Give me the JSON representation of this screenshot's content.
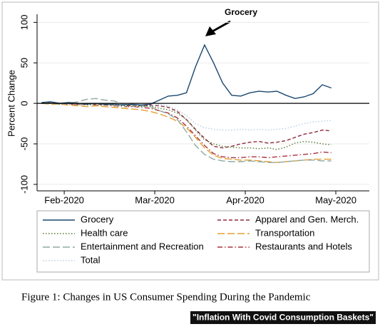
{
  "chart_data": {
    "type": "line",
    "y_label": "Percent Change",
    "annotation": "Grocery",
    "x": [
      1.75,
      1.85,
      1.95,
      2.05,
      2.15,
      2.25,
      2.35,
      2.45,
      2.55,
      2.65,
      2.75,
      2.85,
      2.95,
      3.05,
      3.15,
      3.25,
      3.35,
      3.45,
      3.55,
      3.65,
      3.75,
      3.85,
      3.95,
      4.05,
      4.15,
      4.25,
      4.35,
      4.45,
      4.55,
      4.65,
      4.75,
      4.85,
      4.95
    ],
    "xlim": [
      1.7,
      5.37
    ],
    "xticks": [
      {
        "value": 2,
        "label": "Feb-2020"
      },
      {
        "value": 3,
        "label": "Mar-2020"
      },
      {
        "value": 4,
        "label": "Apr-2020"
      },
      {
        "value": 5,
        "label": "May-2020"
      }
    ],
    "ylim": [
      -108,
      110
    ],
    "yticks": [
      -100,
      -50,
      0,
      50,
      100
    ],
    "grid": true,
    "hline": 0,
    "series": [
      {
        "name": "Grocery",
        "color": "#1a476f",
        "style": "solid",
        "values": [
          1,
          2,
          0,
          1,
          0,
          -1,
          0,
          -1,
          -1,
          -2,
          -1,
          -2,
          -1,
          4,
          9,
          10,
          13,
          45,
          72,
          50,
          25,
          10,
          9,
          13,
          15,
          14,
          15,
          10,
          6,
          8,
          12,
          23,
          19
        ]
      },
      {
        "name": "Health care",
        "color": "#55752f",
        "style": "dotted",
        "values": [
          0,
          1,
          -1,
          0,
          -1,
          -2,
          -1,
          -2,
          -2,
          -3,
          -3,
          -4,
          -3,
          -6,
          -8,
          -12,
          -20,
          -33,
          -45,
          -50,
          -53,
          -54,
          -55,
          -55,
          -56,
          -55,
          -57,
          -54,
          -49,
          -47,
          -48,
          -50,
          -51
        ]
      },
      {
        "name": "Entertainment and Recreation",
        "color": "#90a8a0",
        "style": "longdash",
        "values": [
          0,
          1,
          -1,
          0,
          2,
          5,
          6,
          4,
          3,
          -1,
          -2,
          -3,
          -4,
          -9,
          -13,
          -20,
          -35,
          -52,
          -63,
          -69,
          -71,
          -72,
          -72,
          -71,
          -72,
          -73,
          -73,
          -72,
          -71,
          -70,
          -70,
          -71,
          -71
        ]
      },
      {
        "name": "Total",
        "color": "#b8cde0",
        "style": "dotted",
        "values": [
          0,
          0,
          -1,
          -1,
          -2,
          -1,
          -2,
          -2,
          -3,
          -4,
          -4,
          -5,
          -3,
          -1,
          -3,
          -8,
          -15,
          -25,
          -30,
          -32,
          -33,
          -33,
          -32,
          -33,
          -32,
          -33,
          -32,
          -31,
          -28,
          -25,
          -23,
          -22,
          -21
        ]
      },
      {
        "name": "Apparel and Gen. Merch.",
        "color": "#8c2a3c",
        "style": "dashed",
        "values": [
          0,
          1,
          0,
          -1,
          -1,
          0,
          -1,
          -2,
          -1,
          -2,
          -3,
          -3,
          -2,
          -3,
          -5,
          -10,
          -20,
          -32,
          -43,
          -53,
          -55,
          -53,
          -50,
          -48,
          -47,
          -49,
          -48,
          -46,
          -42,
          -38,
          -36,
          -33,
          -34
        ]
      },
      {
        "name": "Transportation",
        "color": "#e3a032",
        "style": "longdash",
        "values": [
          0,
          -1,
          -1,
          -2,
          -3,
          -4,
          -3,
          -4,
          -5,
          -6,
          -7,
          -8,
          -10,
          -13,
          -17,
          -22,
          -30,
          -42,
          -55,
          -64,
          -68,
          -69,
          -70,
          -70,
          -71,
          -72,
          -73,
          -72,
          -71,
          -70,
          -69,
          -69,
          -69
        ]
      },
      {
        "name": "Restaurants and Hotels",
        "color": "#a8323e",
        "style": "dashdot",
        "values": [
          0,
          0,
          -1,
          -1,
          -2,
          -1,
          -2,
          -2,
          -3,
          -4,
          -4,
          -5,
          -6,
          -9,
          -12,
          -18,
          -28,
          -40,
          -52,
          -62,
          -66,
          -67,
          -67,
          -66,
          -66,
          -67,
          -66,
          -65,
          -64,
          -63,
          -62,
          -60,
          -61
        ]
      }
    ]
  },
  "figure_caption": "Figure 1: Changes in US Consumer Spending During the Pandemic",
  "watermark": "\"Inflation With Covid Consumption Baskets\""
}
